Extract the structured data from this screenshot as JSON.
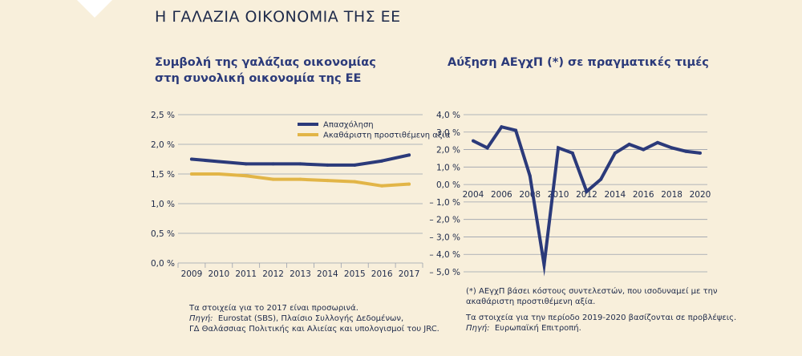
{
  "page_title": "Η ΓΑΛΑΖΙΑ ΟΙΚΟΝΟΜΙΑ ΤΗΣ ΕΕ",
  "colors": {
    "navy": "#2b3a7a",
    "gold": "#e2b547",
    "background": "#f8efdb"
  },
  "left_panel": {
    "title_line1": "Συμβολή της γαλάζιας οικονομίας",
    "title_line2": "στη συνολική οικονομία της ΕΕ",
    "note_line1": "Τα στοιχεία για το 2017 είναι προσωρινά.",
    "note_source_label": "Πηγή:",
    "note_source_line1": "Eurostat (SBS), Πλαίσιο Συλλογής Δεδομένων,",
    "note_source_line2": "ΓΔ Θαλάσσιας Πολιτικής και Αλιείας και υπολογισμοί του JRC."
  },
  "right_panel": {
    "title": "Αύξηση ΑΕγχΠ (*) σε πραγματικές τιμές",
    "note_line1": "(*) ΑΕγχΠ βάσει κόστους συντελεστών, που ισοδυναμεί με την",
    "note_line2": "ακαθάριστη προστιθέμενη αξία.",
    "note_line3": "Τα στοιχεία για την περίοδο 2019-2020 βασίζονται σε προβλέψεις.",
    "note_source_label": "Πηγή:",
    "note_source_text": "Ευρωπαϊκή Επιτροπή."
  },
  "chart_data": [
    {
      "type": "line",
      "x": [
        2009,
        2010,
        2011,
        2012,
        2013,
        2014,
        2015,
        2016,
        2017
      ],
      "xtick_labels": [
        "2009",
        "2010",
        "2011",
        "2012",
        "2013",
        "2014",
        "2015",
        "2016",
        "2017"
      ],
      "ytick_labels": [
        "0,0 %",
        "0,5 %",
        "1,0 %",
        "1,5 %",
        "2,0 %",
        "2,5 %"
      ],
      "ylim": [
        0,
        2.5
      ],
      "grid": true,
      "legend_position": "top-right",
      "series": [
        {
          "name": "Απασχόληση",
          "color": "#2b3a7a",
          "values": [
            1.75,
            1.71,
            1.67,
            1.67,
            1.67,
            1.65,
            1.65,
            1.72,
            1.82
          ]
        },
        {
          "name": "Ακαθάριστη προστιθέμενη αξία",
          "color": "#e2b547",
          "values": [
            1.5,
            1.5,
            1.47,
            1.41,
            1.41,
            1.39,
            1.37,
            1.3,
            1.33
          ]
        }
      ]
    },
    {
      "type": "line",
      "x": [
        2004,
        2005,
        2006,
        2007,
        2008,
        2009,
        2010,
        2011,
        2012,
        2013,
        2014,
        2015,
        2016,
        2017,
        2018,
        2019,
        2020
      ],
      "xtick_labels": [
        "2004",
        "2006",
        "2008",
        "2010",
        "2012",
        "2014",
        "2016",
        "2018",
        "2020"
      ],
      "ytick_labels": [
        "4,0 %",
        "3,0 %",
        "2,0 %",
        "1,0 %",
        "0,0 %",
        "– 1,0 %",
        "– 2,0 %",
        "– 3,0 %",
        "– 4,0 %",
        "– 5,0 %"
      ],
      "ylim": [
        -5,
        4
      ],
      "grid": true,
      "series": [
        {
          "color": "#2b3a7a",
          "values": [
            2.5,
            2.1,
            3.3,
            3.1,
            0.5,
            -4.6,
            2.1,
            1.8,
            -0.4,
            0.3,
            1.8,
            2.3,
            2.0,
            2.4,
            2.1,
            1.9,
            1.8
          ]
        }
      ]
    }
  ]
}
